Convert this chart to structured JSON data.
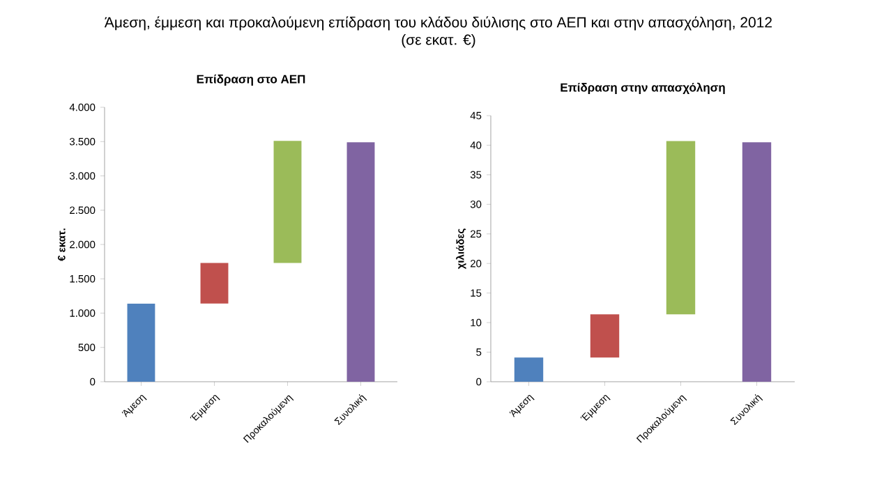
{
  "chart_data": [
    {
      "type": "other",
      "title": "Άμεση, έμμεση και προκαλούμενη επίδραση του κλάδου διύλισης στο ΑΕΠ και στην απασχόληση, 2012",
      "subtitle": "(σε εκατ. €)"
    },
    {
      "type": "bar",
      "title": "Επίδραση στο ΑΕΠ",
      "ylabel": "€ εκατ.",
      "categories": [
        "Άμεση",
        "Έμμεση",
        "Προκαλούμενη",
        "Συνολική"
      ],
      "base": [
        0,
        1140,
        1730,
        0
      ],
      "values": [
        1140,
        590,
        1780,
        3490
      ],
      "colors": [
        "#4f81bd",
        "#c0504d",
        "#9bbb59",
        "#8064a2"
      ],
      "ylim": [
        0,
        4000
      ],
      "yticks": [
        0,
        {
          "value": 500,
          "label": "500"
        },
        {
          "value": 1000,
          "label": "1.000"
        },
        {
          "value": 1500,
          "label": "1.500"
        },
        {
          "value": 2000,
          "label": "2.000"
        },
        {
          "value": 2500,
          "label": "2.500"
        },
        {
          "value": 3000,
          "label": "3.000"
        },
        {
          "value": 3500,
          "label": "3.500"
        },
        {
          "value": 4000,
          "label": "4.000"
        }
      ]
    },
    {
      "type": "bar",
      "title": "Επίδραση στην απασχόληση",
      "ylabel": "χιλιάδες",
      "categories": [
        "Άμεση",
        "Έμμεση",
        "Προκαλούμενη",
        "Συνολική"
      ],
      "base": [
        0,
        4.1,
        11.4,
        0
      ],
      "values": [
        4.1,
        7.3,
        29.3,
        40.5
      ],
      "colors": [
        "#4f81bd",
        "#c0504d",
        "#9bbb59",
        "#8064a2"
      ],
      "ylim": [
        0,
        45
      ],
      "yticks": [
        0,
        5,
        10,
        15,
        20,
        25,
        30,
        35,
        40,
        45
      ]
    }
  ]
}
